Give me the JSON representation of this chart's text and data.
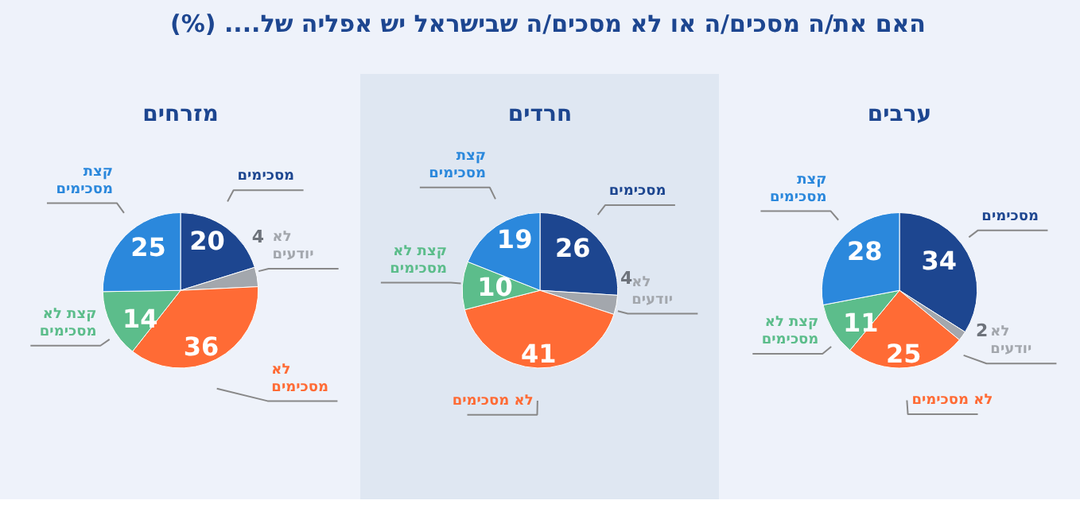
{
  "chart_data": [
    {
      "type": "pie",
      "title": "מזרחים",
      "annotations": [
        "האם את/ה מסכים/ה או לא מסכים/ה שבישראל יש אפליה של.... (%)"
      ],
      "categories": [
        "מסכימים",
        "לא יודעים",
        "לא מסכימים",
        "קצת לא מסכימים",
        "קצת מסכימים"
      ],
      "values": [
        20,
        4,
        36,
        14,
        25
      ],
      "colors": [
        "#1d4690",
        "#a3a7ad",
        "#ff6b35",
        "#5cbd8b",
        "#2b88dc"
      ],
      "data_labels": true
    },
    {
      "type": "pie",
      "title": "חרדים",
      "categories": [
        "מסכימים",
        "לא יודעים",
        "לא מסכימים",
        "קצת לא מסכימים",
        "קצת מסכימים"
      ],
      "values": [
        26,
        4,
        41,
        10,
        19
      ],
      "colors": [
        "#1d4690",
        "#a3a7ad",
        "#ff6b35",
        "#5cbd8b",
        "#2b88dc"
      ],
      "data_labels": true
    },
    {
      "type": "pie",
      "title": "ערבים",
      "categories": [
        "מסכימים",
        "לא יודעים",
        "לא מסכימים",
        "קצת לא מסכימים",
        "קצת מסכימים"
      ],
      "values": [
        34,
        2,
        25,
        11,
        28
      ],
      "colors": [
        "#1d4690",
        "#a3a7ad",
        "#ff6b35",
        "#5cbd8b",
        "#2b88dc"
      ],
      "data_labels": true
    }
  ]
}
